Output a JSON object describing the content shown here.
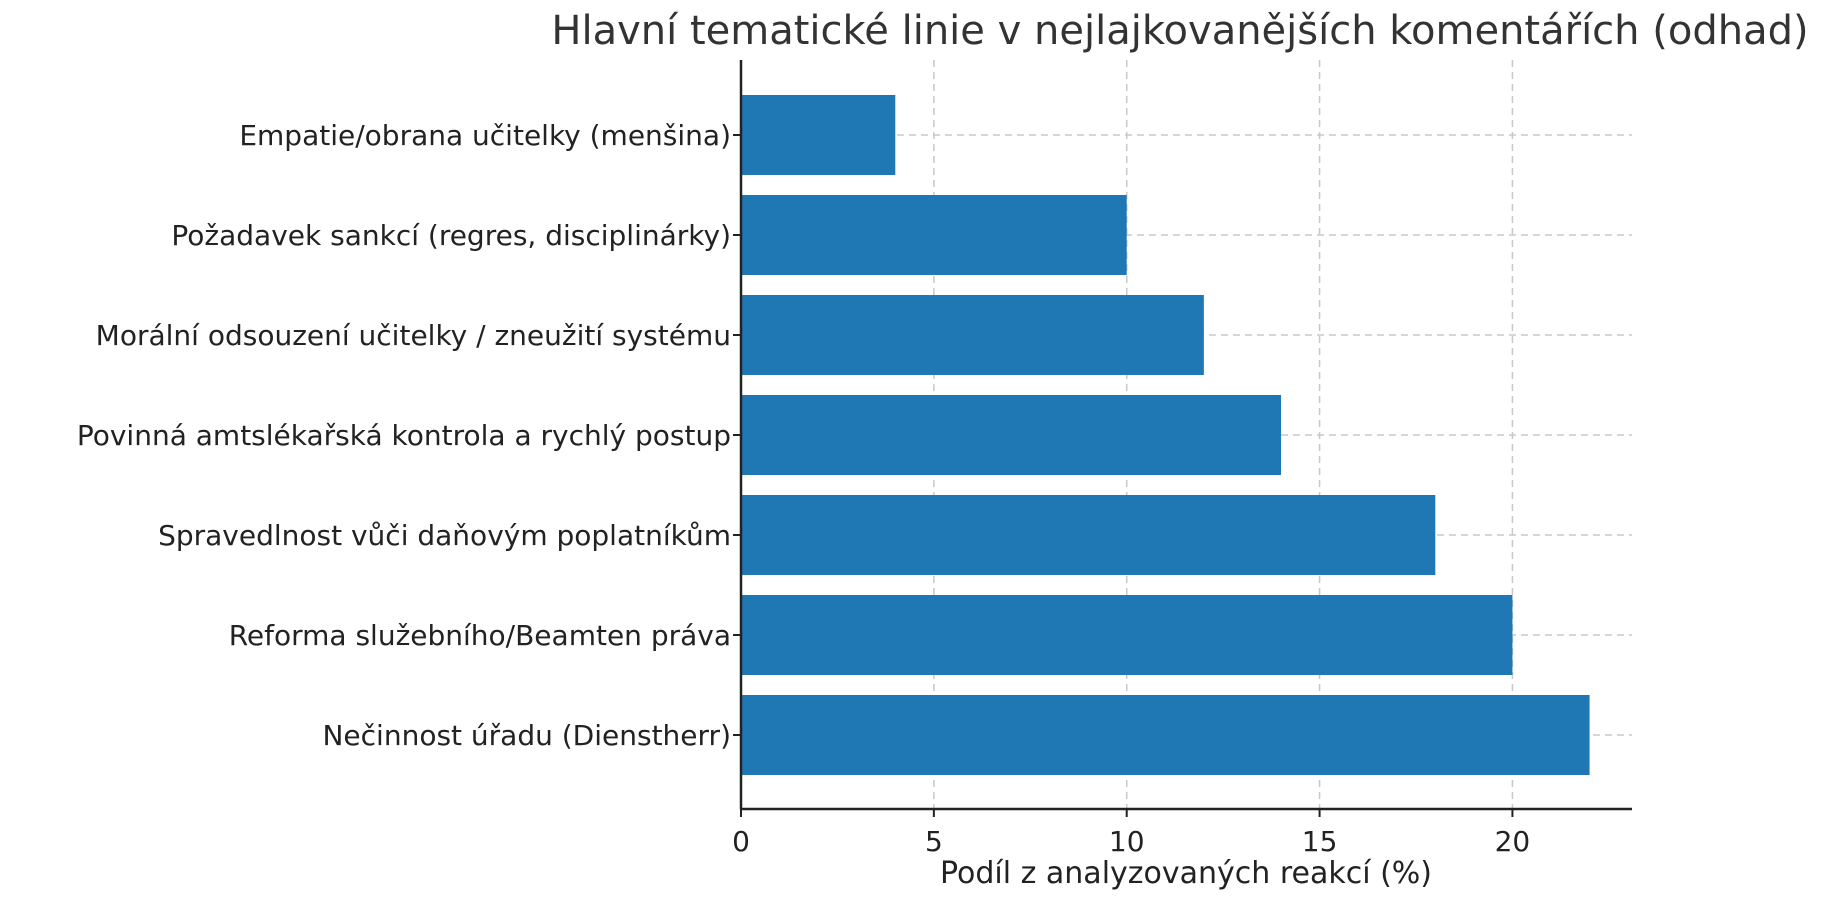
{
  "chart_data": {
    "type": "bar",
    "orientation": "horizontal",
    "title": "Hlavní tematické linie v nejlajkovanějších komentářích (odhad)",
    "xlabel": "Podíl z analyzovaných reakcí (%)",
    "ylabel": "",
    "categories": [
      "Empatie/obrana učitelky (menšina)",
      "Požadavek sankcí (regres, disciplinárky)",
      "Morální odsouzení učitelky / zneužití systému",
      "Povinná amtslékařská kontrola a rychlý postup",
      "Spravedlnost vůči daňovým poplatníkům",
      "Reforma služebního/Beamten práva",
      "Nečinnost úřadu (Dienstherr)"
    ],
    "values": [
      4,
      10,
      12,
      14,
      18,
      20,
      22
    ],
    "xlim": [
      0,
      23.1
    ],
    "xticks": [
      0,
      5,
      10,
      15,
      20
    ],
    "grid": true,
    "bar_color": "#1f77b4",
    "grid_color": "#c8c8c8",
    "axis_color": "#222222"
  }
}
